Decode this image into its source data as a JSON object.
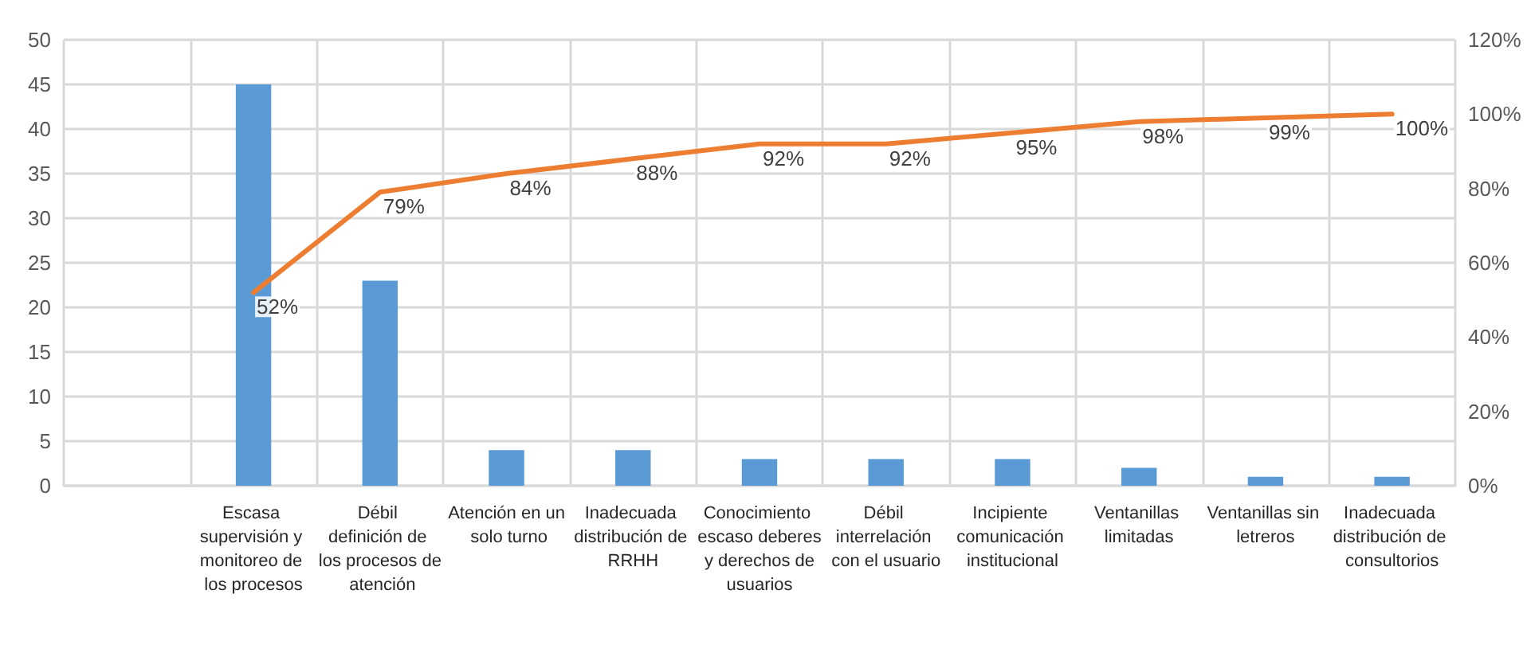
{
  "chart_data": {
    "type": "bar",
    "categories": [
      null,
      "Escasa supervisión y monitoreo de los procesos",
      "Débil definición de los procesos de atención",
      "Atención en un solo turno",
      "Inadecuada distribución de RRHH",
      "Conocimiento escaso deberes y derechos de usuarios",
      "Débil interrelación con el usuario",
      "Incipiente comunicación institucional",
      "Ventanillas limitadas",
      "Ventanillas sin letreros",
      "Inadecuada distribución de consultorios"
    ],
    "series": [
      {
        "color": "#5b9bd5",
        "values": [
          null,
          45,
          23,
          4,
          4,
          3,
          3,
          3,
          2,
          1,
          1
        ]
      },
      {
        "type": "line",
        "axis": "y2",
        "color": "#ed7d31",
        "values": [
          null,
          52,
          79,
          84,
          88,
          92,
          92,
          95,
          98,
          99,
          100
        ],
        "value_labels": [
          null,
          "52%",
          "79%",
          "84%",
          "88%",
          "92%",
          "92%",
          "95%",
          "98%",
          "99%",
          "100%"
        ]
      }
    ],
    "ylim": [
      0,
      50
    ],
    "yticks": [
      0,
      5,
      10,
      15,
      20,
      25,
      30,
      35,
      40,
      45,
      50
    ],
    "y2lim": [
      0,
      120
    ],
    "y2ticks": [
      {
        "value": 0,
        "label": "0%"
      },
      {
        "value": 20,
        "label": "20%"
      },
      {
        "value": 40,
        "label": "40%"
      },
      {
        "value": 60,
        "label": "60%"
      },
      {
        "value": 80,
        "label": "80%"
      },
      {
        "value": 100,
        "label": "100%"
      },
      {
        "value": 120,
        "label": "120%"
      }
    ],
    "grid": true,
    "marker": "none"
  }
}
